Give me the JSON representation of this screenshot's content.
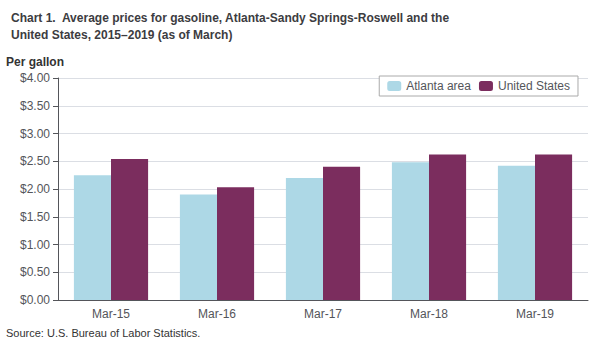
{
  "chart_data": {
    "type": "bar",
    "title": "Chart 1.  Average prices for gasoline, Atlanta-Sandy Springs-Roswell and the\nUnited States, 2015–2019 (as of March)",
    "ylabel": "Per gallon",
    "annotations": [
      "Source: U.S. Bureau of Labor Statistics."
    ],
    "categories": [
      "Mar-15",
      "Mar-16",
      "Mar-17",
      "Mar-18",
      "Mar-19"
    ],
    "series": [
      {
        "name": "Atlanta area",
        "color": "#add8e6",
        "values": [
          2.25,
          1.9,
          2.2,
          2.48,
          2.42
        ]
      },
      {
        "name": "United States",
        "color": "#7B2D5E",
        "values": [
          2.54,
          2.03,
          2.4,
          2.62,
          2.62
        ]
      }
    ],
    "ylim": [
      0,
      4.0
    ],
    "yticks": [
      {
        "value": 0.0,
        "label": "$0.00"
      },
      {
        "value": 0.5,
        "label": "$0.50"
      },
      {
        "value": 1.0,
        "label": "$1.00"
      },
      {
        "value": 1.5,
        "label": "$1.50"
      },
      {
        "value": 2.0,
        "label": "$2.00"
      },
      {
        "value": 2.5,
        "label": "$2.50"
      },
      {
        "value": 3.0,
        "label": "$3.00"
      },
      {
        "value": 3.5,
        "label": "$3.50"
      },
      {
        "value": 4.0,
        "label": "$4.00"
      }
    ],
    "grid": true,
    "legend": "upper right"
  }
}
